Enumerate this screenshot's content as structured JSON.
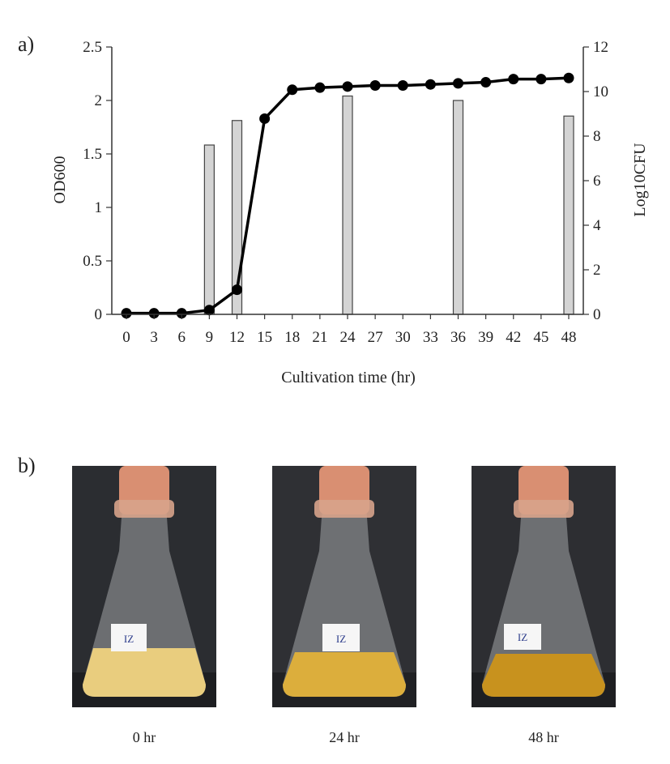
{
  "panel_a_label": "a)",
  "panel_b_label": "b)",
  "chart_data": {
    "type": "bar+line",
    "xlabel": "Cultivation time (hr)",
    "ylabel_left": "OD600",
    "ylabel_right": "Log10CFU",
    "x_ticks": [
      "0",
      "3",
      "6",
      "9",
      "12",
      "15",
      "18",
      "21",
      "24",
      "27",
      "30",
      "33",
      "36",
      "39",
      "42",
      "45",
      "48"
    ],
    "ylim_left": [
      0,
      2.5
    ],
    "y_ticks_left": [
      "0",
      "0.5",
      "1",
      "1.5",
      "2",
      "2.5"
    ],
    "ylim_right": [
      0,
      12
    ],
    "y_ticks_right": [
      "0",
      "2",
      "4",
      "6",
      "8",
      "10",
      "12"
    ],
    "grid": false,
    "bars": {
      "axis": "right",
      "x": [
        9,
        12,
        24,
        36,
        48
      ],
      "values": [
        7.6,
        8.7,
        9.8,
        9.6,
        8.9
      ]
    },
    "line": {
      "axis": "left",
      "x": [
        0,
        3,
        6,
        9,
        12,
        15,
        18,
        21,
        24,
        27,
        30,
        33,
        36,
        39,
        42,
        45,
        48
      ],
      "values": [
        0.01,
        0.01,
        0.01,
        0.04,
        0.23,
        1.83,
        2.1,
        2.12,
        2.13,
        2.14,
        2.14,
        2.15,
        2.16,
        2.17,
        2.2,
        2.2,
        2.21
      ]
    }
  },
  "photos": [
    {
      "caption": "0 hr",
      "label_text": "IZ",
      "liquid_color": "#e9cd7e"
    },
    {
      "caption": "24 hr",
      "label_text": "IZ",
      "liquid_color": "#dcae3c"
    },
    {
      "caption": "48 hr",
      "label_text": "IZ",
      "liquid_color": "#c8921e"
    }
  ]
}
